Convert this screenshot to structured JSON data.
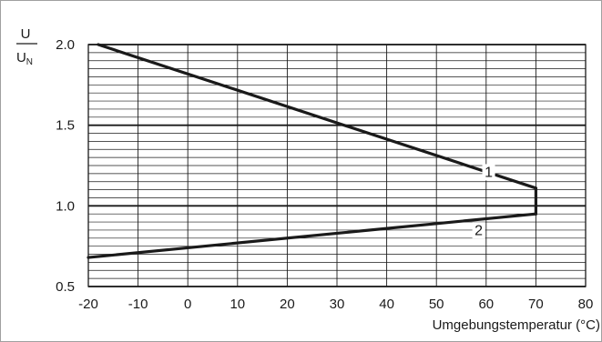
{
  "chart_data": {
    "type": "line",
    "ylabel": {
      "numerator": "U",
      "denominator_main": "U",
      "denominator_sub": "N"
    },
    "xlabel": "Umgebungstemperatur  (°C)",
    "xlim": [
      -20,
      80
    ],
    "ylim": [
      0.5,
      2.0
    ],
    "xticks": [
      "-20",
      "-10",
      "0",
      "10",
      "20",
      "30",
      "40",
      "50",
      "60",
      "70",
      "80"
    ],
    "yticks": [
      "0.5",
      "1.0",
      "1.5",
      "2.0"
    ],
    "grid": true,
    "series": [
      {
        "name": "1",
        "color": "#1a1a1a",
        "points": [
          [
            -18,
            2.0
          ],
          [
            70,
            1.11
          ]
        ]
      },
      {
        "name": "2",
        "color": "#1a1a1a",
        "points": [
          [
            -20,
            0.68
          ],
          [
            70,
            0.95
          ]
        ]
      }
    ],
    "connector": {
      "x": 70,
      "y_from": 0.95,
      "y_to": 1.11
    },
    "curve_labels": [
      {
        "text": "1",
        "x": 60.5,
        "y": 1.18
      },
      {
        "text": "2",
        "x": 58.5,
        "y": 0.82
      }
    ]
  }
}
